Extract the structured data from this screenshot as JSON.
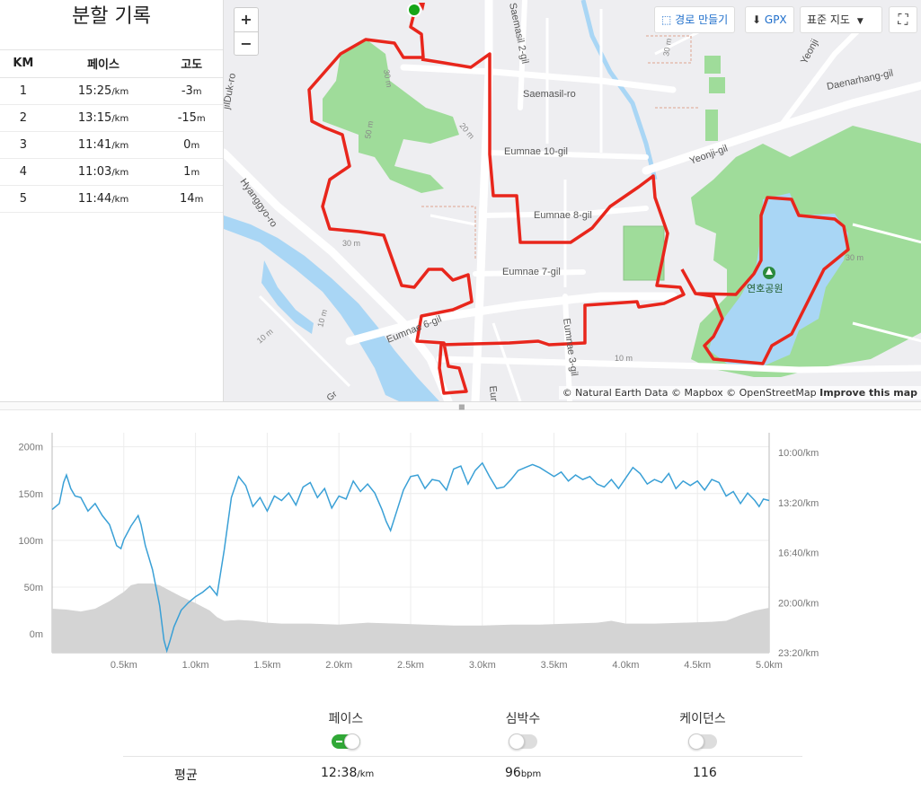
{
  "splits": {
    "title": "분할 기록",
    "headers": [
      "KM",
      "페이스",
      "고도"
    ],
    "pace_unit": "/km",
    "alt_unit": "m",
    "rows": [
      {
        "km": "1",
        "pace": "15:25",
        "alt": "-3"
      },
      {
        "km": "2",
        "pace": "13:15",
        "alt": "-15"
      },
      {
        "km": "3",
        "pace": "11:41",
        "alt": "0"
      },
      {
        "km": "4",
        "pace": "11:03",
        "alt": "1"
      },
      {
        "km": "5",
        "pace": "11:44",
        "alt": "14"
      }
    ]
  },
  "map": {
    "zoom_in": "+",
    "zoom_out": "−",
    "route_button": "경로 만들기",
    "gpx_button": "GPX",
    "map_style": "표준 지도",
    "attribution": "© Natural Earth Data © Mapbox © OpenStreetMap",
    "improve": "Improve this map",
    "park_label": "연호공원",
    "labels": [
      {
        "text": "Saemasil 2-gil"
      },
      {
        "text": "Saemasil-ro"
      },
      {
        "text": "Eumnae 10-gil"
      },
      {
        "text": "Yeonji-gil"
      },
      {
        "text": "Daenarhang-gil"
      },
      {
        "text": "Yeonji"
      },
      {
        "text": "Eumnae 8-gil"
      },
      {
        "text": "Eumnae 7-gil"
      },
      {
        "text": "Eumnae 6-gil"
      },
      {
        "text": "Eumnae 3-gil"
      },
      {
        "text": "Hyanggyo-ro"
      },
      {
        "text": "jilDuk-ro"
      },
      {
        "text": "Eumn"
      },
      {
        "text": "Gr"
      },
      {
        "text": "30 m"
      },
      {
        "text": "50 m"
      },
      {
        "text": "20 m"
      },
      {
        "text": "30 m"
      },
      {
        "text": "10 m"
      },
      {
        "text": "10 m"
      },
      {
        "text": "10 m"
      },
      {
        "text": "30 m"
      },
      {
        "text": "30 m"
      }
    ],
    "route_color": "#e8261c",
    "water_color": "#a9d6f5",
    "park_color": "#9fdc9a"
  },
  "chart_data": {
    "type": "line",
    "x_ticks": [
      "0.5km",
      "1.0km",
      "1.5km",
      "2.0km",
      "2.5km",
      "3.0km",
      "3.5km",
      "4.0km",
      "4.5km",
      "5.0km"
    ],
    "left_ticks": [
      "200m",
      "150m",
      "100m",
      "50m",
      "0m"
    ],
    "right_ticks": [
      "10:00/km",
      "13:20/km",
      "16:40/km",
      "20:00/km",
      "23:20/km"
    ],
    "xlim": [
      0,
      5.0
    ],
    "left_ylim": [
      -20,
      215
    ],
    "series": [
      {
        "axis": "left",
        "kind": "area",
        "color": "#d4d4d4",
        "points": [
          [
            0.0,
            27
          ],
          [
            0.1,
            26
          ],
          [
            0.2,
            24
          ],
          [
            0.3,
            27
          ],
          [
            0.4,
            35
          ],
          [
            0.5,
            45
          ],
          [
            0.55,
            52
          ],
          [
            0.6,
            54
          ],
          [
            0.7,
            54
          ],
          [
            0.75,
            52
          ],
          [
            0.8,
            48
          ],
          [
            0.9,
            40
          ],
          [
            1.0,
            33
          ],
          [
            1.1,
            25
          ],
          [
            1.15,
            18
          ],
          [
            1.2,
            14
          ],
          [
            1.3,
            15
          ],
          [
            1.4,
            14
          ],
          [
            1.5,
            12
          ],
          [
            1.6,
            11
          ],
          [
            1.8,
            11
          ],
          [
            2.0,
            10
          ],
          [
            2.2,
            12
          ],
          [
            2.4,
            11
          ],
          [
            2.6,
            10
          ],
          [
            2.8,
            9
          ],
          [
            3.0,
            9
          ],
          [
            3.2,
            10
          ],
          [
            3.4,
            10
          ],
          [
            3.6,
            11
          ],
          [
            3.8,
            12
          ],
          [
            3.9,
            14
          ],
          [
            4.0,
            11
          ],
          [
            4.2,
            11
          ],
          [
            4.4,
            12
          ],
          [
            4.6,
            13
          ],
          [
            4.7,
            14
          ],
          [
            4.8,
            20
          ],
          [
            4.9,
            25
          ],
          [
            5.0,
            28
          ]
        ]
      },
      {
        "axis": "right",
        "kind": "line",
        "color": "#3aa0d6",
        "pace_range_minutes": [
          10.0,
          23.33
        ],
        "points": [
          [
            0.0,
            13.8
          ],
          [
            0.05,
            13.4
          ],
          [
            0.08,
            12.0
          ],
          [
            0.1,
            11.5
          ],
          [
            0.13,
            12.4
          ],
          [
            0.16,
            12.9
          ],
          [
            0.2,
            13.0
          ],
          [
            0.25,
            13.9
          ],
          [
            0.3,
            13.4
          ],
          [
            0.35,
            14.2
          ],
          [
            0.4,
            14.8
          ],
          [
            0.45,
            16.2
          ],
          [
            0.48,
            16.4
          ],
          [
            0.5,
            15.8
          ],
          [
            0.55,
            14.9
          ],
          [
            0.6,
            14.2
          ],
          [
            0.62,
            14.8
          ],
          [
            0.65,
            16.2
          ],
          [
            0.7,
            17.8
          ],
          [
            0.75,
            20.2
          ],
          [
            0.78,
            22.5
          ],
          [
            0.8,
            23.2
          ],
          [
            0.82,
            22.6
          ],
          [
            0.85,
            21.6
          ],
          [
            0.9,
            20.5
          ],
          [
            0.95,
            20.0
          ],
          [
            1.0,
            19.6
          ],
          [
            1.05,
            19.3
          ],
          [
            1.1,
            18.9
          ],
          [
            1.15,
            19.5
          ],
          [
            1.2,
            16.5
          ],
          [
            1.25,
            13.0
          ],
          [
            1.3,
            11.6
          ],
          [
            1.35,
            12.2
          ],
          [
            1.4,
            13.6
          ],
          [
            1.45,
            13.0
          ],
          [
            1.5,
            13.9
          ],
          [
            1.55,
            12.9
          ],
          [
            1.6,
            13.2
          ],
          [
            1.65,
            12.7
          ],
          [
            1.7,
            13.5
          ],
          [
            1.75,
            12.3
          ],
          [
            1.8,
            12.0
          ],
          [
            1.85,
            13.0
          ],
          [
            1.9,
            12.4
          ],
          [
            1.95,
            13.7
          ],
          [
            2.0,
            12.9
          ],
          [
            2.05,
            13.1
          ],
          [
            2.1,
            11.9
          ],
          [
            2.15,
            12.6
          ],
          [
            2.2,
            12.1
          ],
          [
            2.25,
            12.7
          ],
          [
            2.3,
            13.8
          ],
          [
            2.33,
            14.6
          ],
          [
            2.36,
            15.2
          ],
          [
            2.4,
            14.0
          ],
          [
            2.45,
            12.5
          ],
          [
            2.5,
            11.6
          ],
          [
            2.55,
            11.5
          ],
          [
            2.6,
            12.4
          ],
          [
            2.65,
            11.8
          ],
          [
            2.7,
            11.9
          ],
          [
            2.75,
            12.5
          ],
          [
            2.8,
            11.1
          ],
          [
            2.85,
            10.9
          ],
          [
            2.9,
            12.1
          ],
          [
            2.95,
            11.2
          ],
          [
            3.0,
            10.7
          ],
          [
            3.05,
            11.6
          ],
          [
            3.1,
            12.4
          ],
          [
            3.15,
            12.3
          ],
          [
            3.2,
            11.8
          ],
          [
            3.25,
            11.2
          ],
          [
            3.3,
            11.0
          ],
          [
            3.35,
            10.8
          ],
          [
            3.4,
            11.0
          ],
          [
            3.45,
            11.3
          ],
          [
            3.5,
            11.6
          ],
          [
            3.55,
            11.3
          ],
          [
            3.6,
            11.9
          ],
          [
            3.65,
            11.5
          ],
          [
            3.7,
            11.8
          ],
          [
            3.75,
            11.6
          ],
          [
            3.8,
            12.1
          ],
          [
            3.85,
            12.3
          ],
          [
            3.9,
            11.8
          ],
          [
            3.95,
            12.4
          ],
          [
            4.0,
            11.7
          ],
          [
            4.05,
            11.0
          ],
          [
            4.1,
            11.4
          ],
          [
            4.15,
            12.1
          ],
          [
            4.2,
            11.8
          ],
          [
            4.25,
            12.0
          ],
          [
            4.3,
            11.4
          ],
          [
            4.35,
            12.4
          ],
          [
            4.4,
            11.9
          ],
          [
            4.45,
            12.2
          ],
          [
            4.5,
            11.9
          ],
          [
            4.55,
            12.5
          ],
          [
            4.6,
            11.8
          ],
          [
            4.65,
            12.0
          ],
          [
            4.7,
            12.9
          ],
          [
            4.75,
            12.6
          ],
          [
            4.8,
            13.4
          ],
          [
            4.85,
            12.7
          ],
          [
            4.9,
            13.2
          ],
          [
            4.93,
            13.6
          ],
          [
            4.96,
            13.1
          ],
          [
            5.0,
            13.2
          ]
        ]
      }
    ]
  },
  "summary": {
    "toggles": [
      {
        "label": "페이스",
        "on": true
      },
      {
        "label": "심박수",
        "on": false
      },
      {
        "label": "케이던스",
        "on": false
      }
    ],
    "avg_label": "평균",
    "avg_pace": "12:38",
    "avg_pace_unit": "/km",
    "avg_hr": "96",
    "avg_hr_unit": "bpm",
    "avg_cadence": "116"
  }
}
